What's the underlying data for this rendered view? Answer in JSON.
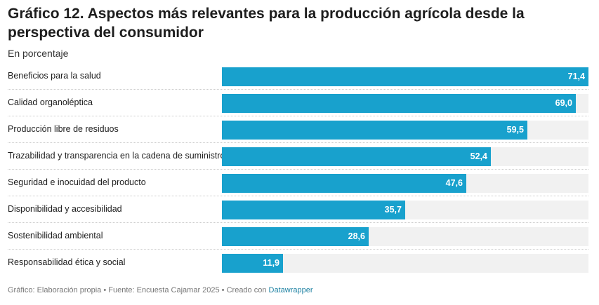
{
  "title": "Gráfico 12. Aspectos más relevantes para la producción agrícola desde la perspectiva del consumidor",
  "subtitle": "En porcentaje",
  "footer": {
    "text": "Gráfico: Elaboración propia • Fuente: Encuesta Cajamar 2025 • Creado con",
    "link": "Datawrapper"
  },
  "colors": {
    "bar": "#18a1cd",
    "background_bar": "#f1f1f1"
  },
  "chart_data": {
    "type": "bar",
    "orientation": "horizontal",
    "categories": [
      "Beneficios para la salud",
      "Calidad organoléptica",
      "Producción libre de residuos",
      "Trazabilidad y transparencia en la cadena de suministro",
      "Seguridad e inocuidad del producto",
      "Disponibilidad y accesibilidad",
      "Sostenibilidad ambiental",
      "Responsabilidad ética y social"
    ],
    "values": [
      71.4,
      69.0,
      59.5,
      52.4,
      47.6,
      35.7,
      28.6,
      11.9
    ],
    "value_labels": [
      "71,4",
      "69,0",
      "59,5",
      "52,4",
      "47,6",
      "35,7",
      "28,6",
      "11,9"
    ],
    "xlim": [
      0,
      71.4
    ],
    "grid": false,
    "legend": "none"
  }
}
